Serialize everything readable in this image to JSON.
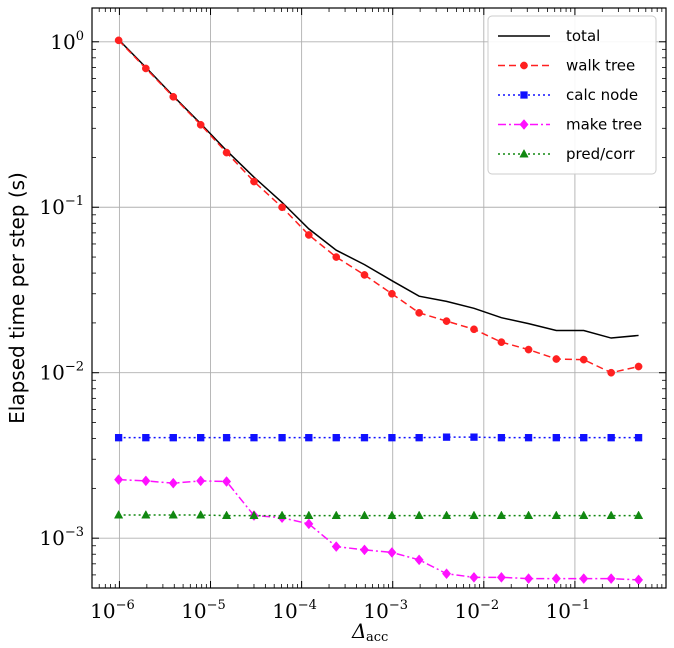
{
  "chart_data": {
    "type": "line",
    "x_scale": "log",
    "y_scale": "log",
    "xlim": [
      5e-07,
      1
    ],
    "ylim": [
      0.0005,
      1.6
    ],
    "grid": true,
    "legend_position": "top-right",
    "xlabel": {
      "main": "Δ",
      "sub": "acc"
    },
    "ylabel": "Elapsed time per step (s)",
    "x_ticks": [
      {
        "value": 1e-06,
        "base": "10",
        "exp": "−6"
      },
      {
        "value": 1e-05,
        "base": "10",
        "exp": "−5"
      },
      {
        "value": 0.0001,
        "base": "10",
        "exp": "−4"
      },
      {
        "value": 0.001,
        "base": "10",
        "exp": "−3"
      },
      {
        "value": 0.01,
        "base": "10",
        "exp": "−2"
      },
      {
        "value": 0.1,
        "base": "10",
        "exp": "−1"
      }
    ],
    "y_ticks": [
      {
        "value": 1,
        "base": "10",
        "exp": "0"
      },
      {
        "value": 0.1,
        "base": "10",
        "exp": "−1"
      },
      {
        "value": 0.01,
        "base": "10",
        "exp": "−2"
      },
      {
        "value": 0.001,
        "base": "10",
        "exp": "−3"
      }
    ],
    "x": [
      9.8e-07,
      1.95e-06,
      3.9e-06,
      7.8e-06,
      1.5e-05,
      3e-05,
      6.1e-05,
      0.00012,
      0.00024,
      0.00049,
      0.00098,
      0.00195,
      0.0039,
      0.0078,
      0.0156,
      0.031,
      0.0625,
      0.125,
      0.25,
      0.5
    ],
    "series": [
      {
        "name": "total",
        "color": "#000000",
        "dash": "",
        "marker": "none",
        "values": [
          1.03,
          0.7,
          0.47,
          0.32,
          0.22,
          0.152,
          0.107,
          0.074,
          0.055,
          0.045,
          0.036,
          0.029,
          0.027,
          0.0245,
          0.0215,
          0.0198,
          0.018,
          0.018,
          0.0162,
          0.0168
        ]
      },
      {
        "name": "walk tree",
        "color": "#ff2020",
        "dash": "7,4",
        "marker": "circle",
        "values": [
          1.02,
          0.69,
          0.465,
          0.315,
          0.214,
          0.143,
          0.1,
          0.068,
          0.05,
          0.039,
          0.03,
          0.023,
          0.0205,
          0.0183,
          0.0153,
          0.0138,
          0.0121,
          0.012,
          0.01,
          0.0109
        ]
      },
      {
        "name": "calc node",
        "color": "#1010ff",
        "dash": "2,3",
        "marker": "square",
        "values": [
          0.00405,
          0.00405,
          0.00405,
          0.00405,
          0.00405,
          0.00405,
          0.00405,
          0.00405,
          0.00405,
          0.00405,
          0.00405,
          0.00405,
          0.00408,
          0.00408,
          0.00405,
          0.00405,
          0.00405,
          0.00405,
          0.00405,
          0.00405
        ]
      },
      {
        "name": "make tree",
        "color": "#ff10ff",
        "dash": "8,3,2,3",
        "marker": "diamond",
        "values": [
          0.00226,
          0.00222,
          0.00215,
          0.00222,
          0.0022,
          0.00137,
          0.00133,
          0.00122,
          0.00089,
          0.00085,
          0.00082,
          0.00074,
          0.00061,
          0.00058,
          0.00058,
          0.00057,
          0.00057,
          0.00057,
          0.00057,
          0.00056
        ]
      },
      {
        "name": "pred/corr",
        "color": "#118811",
        "dash": "2,3",
        "marker": "triangle",
        "values": [
          0.00138,
          0.00138,
          0.00138,
          0.00138,
          0.00137,
          0.00137,
          0.00137,
          0.00137,
          0.00137,
          0.00137,
          0.00137,
          0.00137,
          0.00137,
          0.00137,
          0.00137,
          0.00137,
          0.00137,
          0.00137,
          0.00137,
          0.00137
        ]
      }
    ]
  }
}
